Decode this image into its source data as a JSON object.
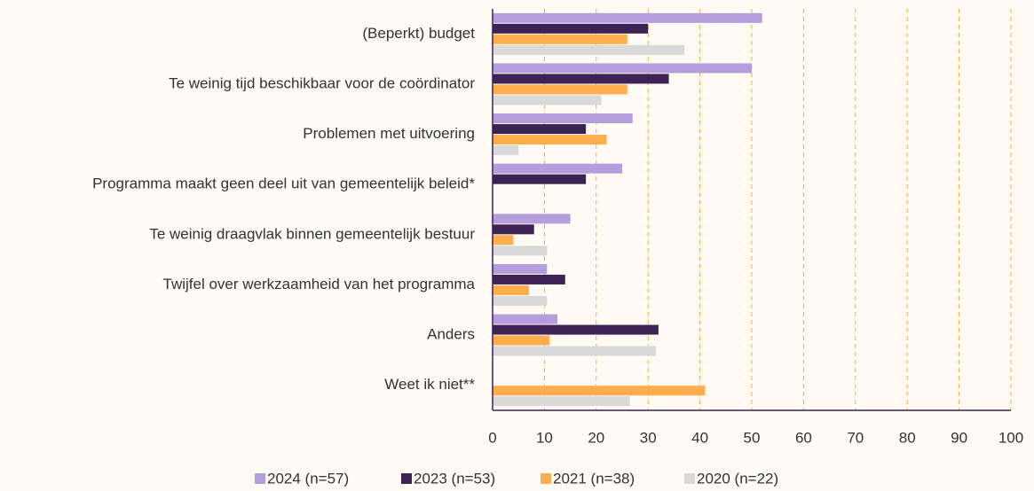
{
  "chart_data": {
    "type": "bar",
    "orientation": "horizontal",
    "categories": [
      "(Beperkt) budget",
      "Te weinig tijd beschikbaar voor de coördinator",
      "Problemen met uitvoering",
      "Programma maakt geen deel uit van gemeentelijk beleid*",
      "Te weinig draagvlak binnen gemeentelijk bestuur",
      "Twijfel over werkzaamheid van het programma",
      "Anders",
      "Weet ik niet**"
    ],
    "series": [
      {
        "name": "2024 (n=57)",
        "color": "#b39ddb",
        "values": [
          52,
          50,
          27,
          25,
          15,
          10.5,
          12.5,
          null
        ]
      },
      {
        "name": "2023 (n=53)",
        "color": "#3d2255",
        "values": [
          30,
          34,
          18,
          18,
          8,
          14,
          32,
          null
        ]
      },
      {
        "name": "2021 (n=38)",
        "color": "#ffad4d",
        "values": [
          26,
          26,
          22,
          null,
          4,
          7,
          11,
          41
        ]
      },
      {
        "name": "2020 (n=22)",
        "color": "#d9d9d9",
        "values": [
          37,
          21,
          5,
          null,
          10.5,
          10.5,
          31.5,
          26.5
        ]
      }
    ],
    "xlim": [
      0,
      100
    ],
    "xticks": [
      0,
      10,
      20,
      30,
      40,
      50,
      60,
      70,
      80,
      90,
      100
    ],
    "grid": true,
    "legend": "bottom"
  }
}
